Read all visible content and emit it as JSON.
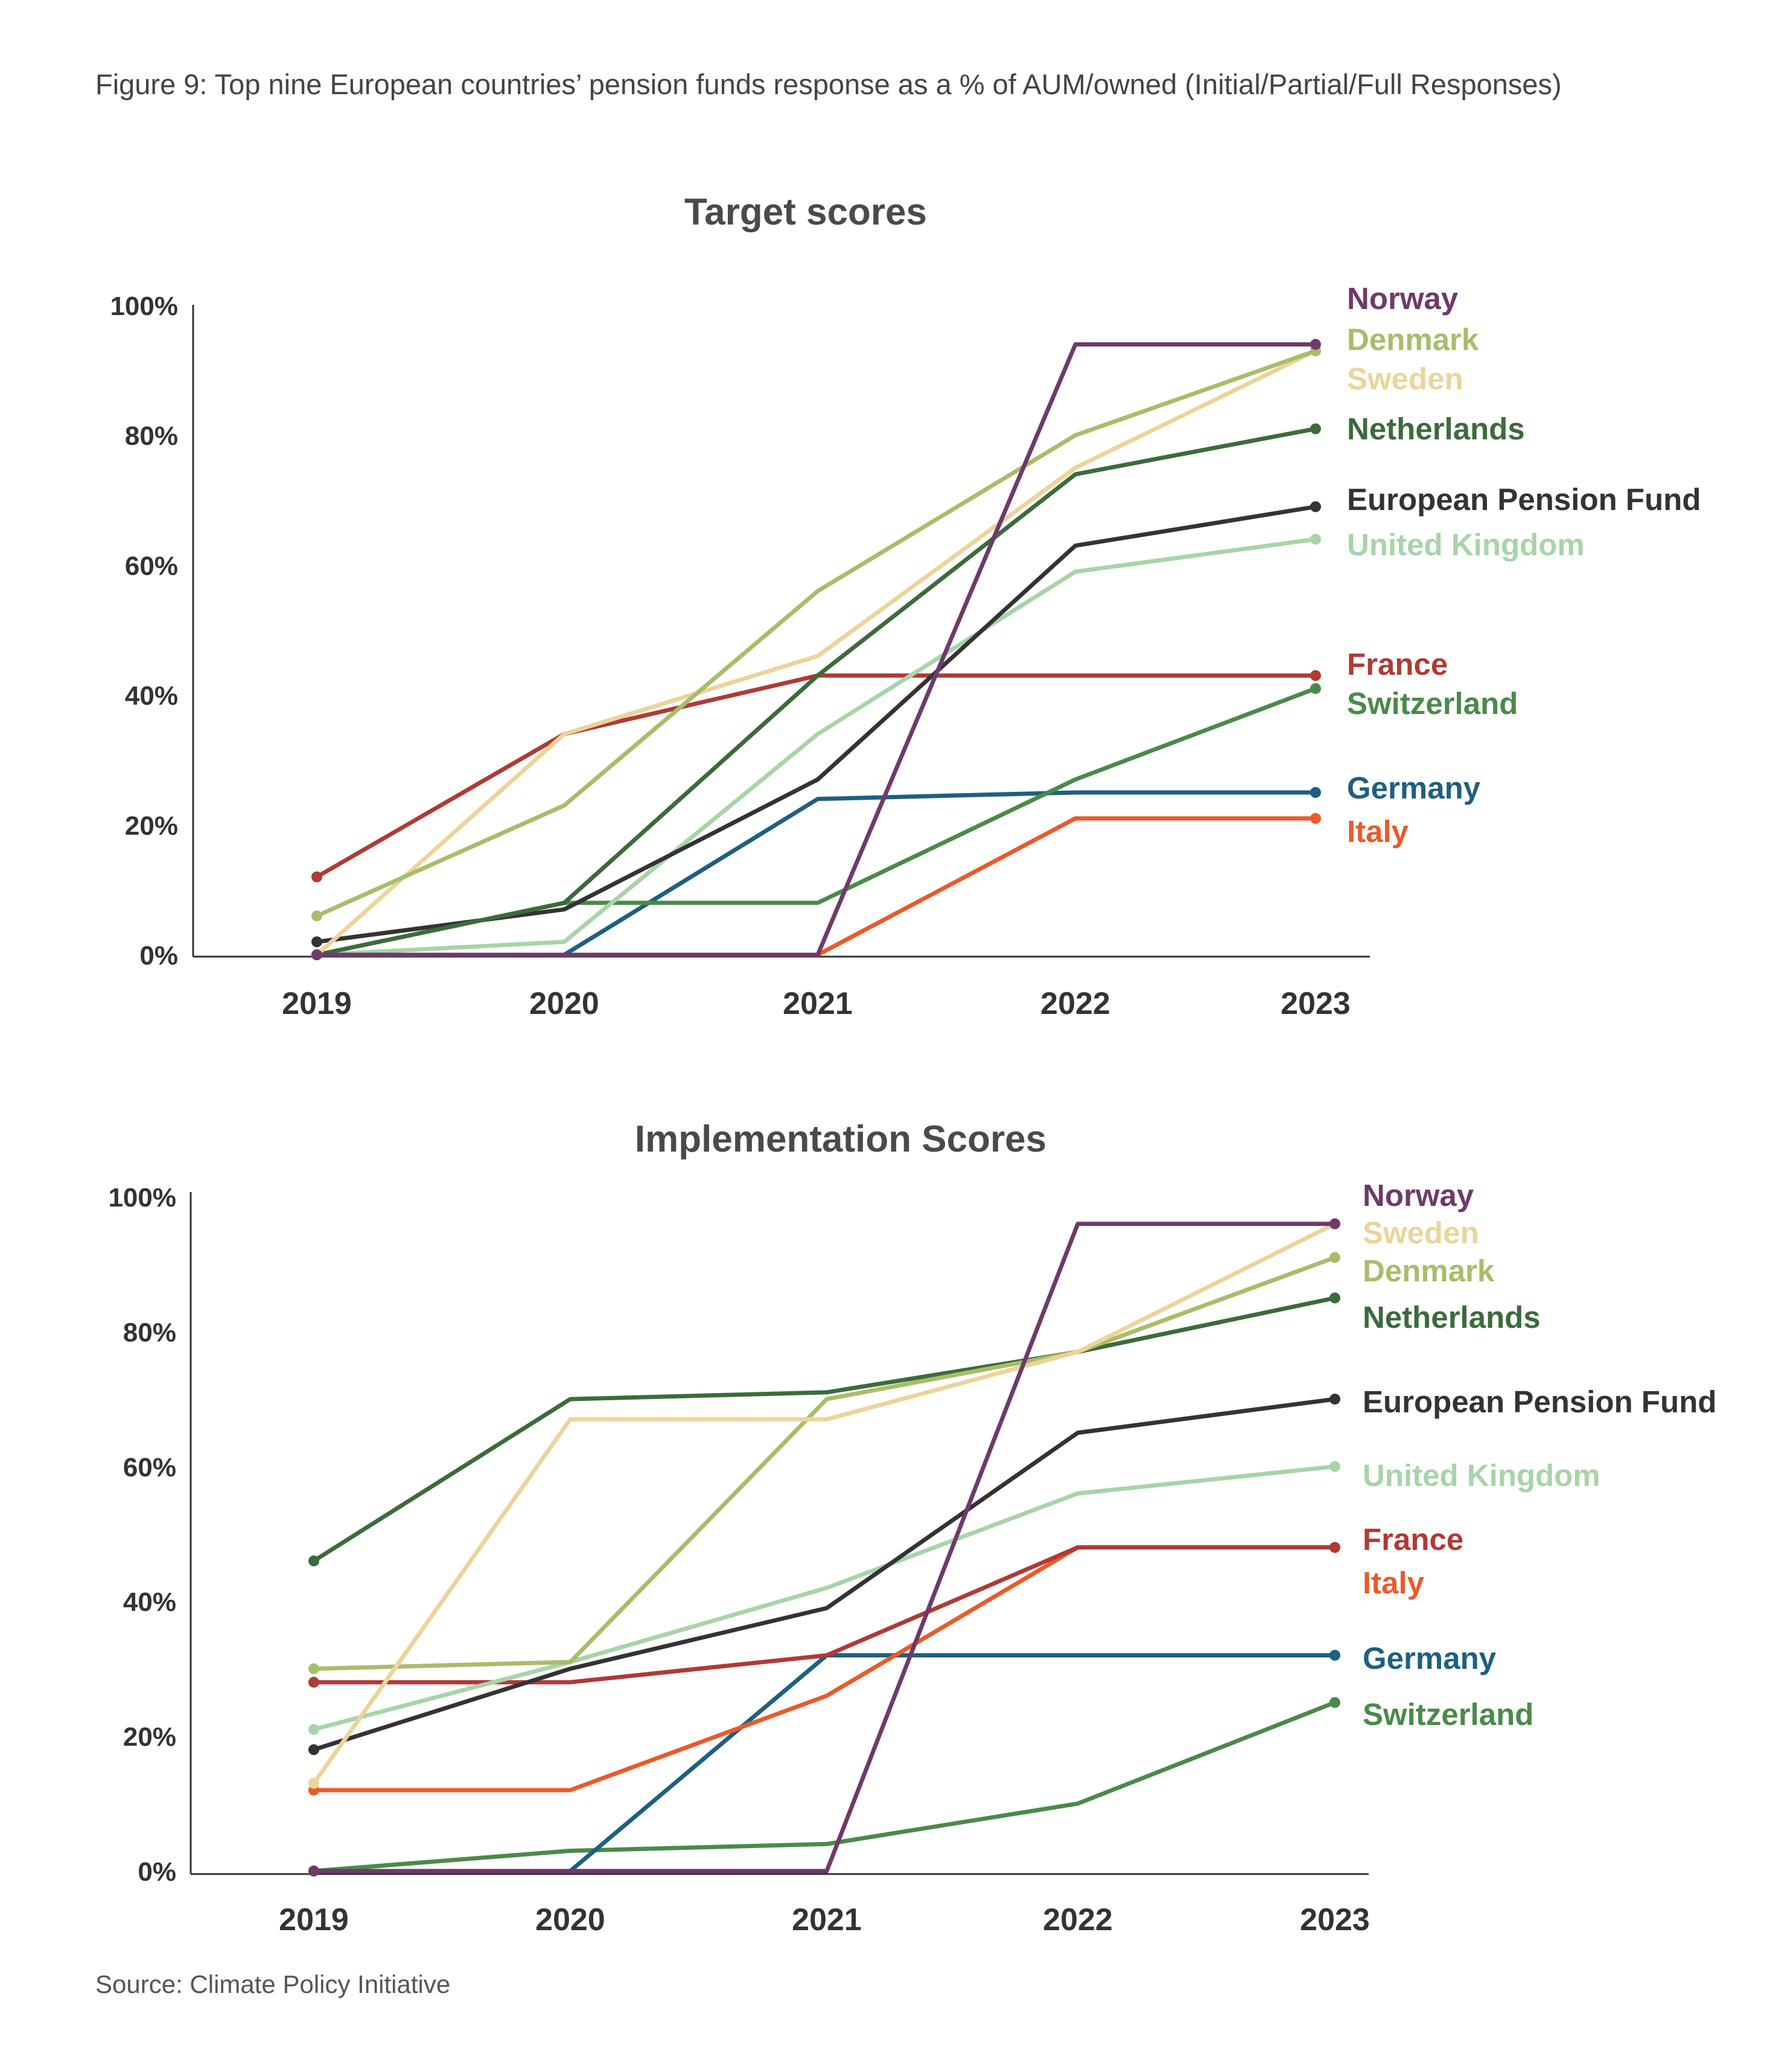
{
  "caption": "Figure 9: Top nine European countries’ pension funds response as a % of AUM/owned (Initial/Partial/Full Responses)",
  "source": "Source: Climate Policy Initiative",
  "colors": {
    "Norway": "#6e3a6a",
    "Denmark": "#a8bd6a",
    "Sweden": "#ecd49a",
    "Netherlands": "#3c6b3c",
    "European Pension Fund": "#333333",
    "United Kingdom": "#a8d4a8",
    "France": "#b03a35",
    "Switzerland": "#4a8a4a",
    "Germany": "#1e5f82",
    "Italy": "#ea5a2a"
  },
  "chart_data": [
    {
      "type": "line",
      "title": "Target scores",
      "x": [
        "2019",
        "2020",
        "2021",
        "2022",
        "2023"
      ],
      "ylim": [
        0,
        100
      ],
      "yticks": [
        "0%",
        "20%",
        "40%",
        "60%",
        "80%",
        "100%"
      ],
      "grid": false,
      "legend": "right, labels at line ends",
      "series": [
        {
          "name": "Norway",
          "values": [
            0,
            0,
            0,
            94,
            94
          ]
        },
        {
          "name": "Denmark",
          "values": [
            6,
            23,
            56,
            80,
            93
          ]
        },
        {
          "name": "Sweden",
          "values": [
            0,
            34,
            46,
            75,
            93
          ]
        },
        {
          "name": "Netherlands",
          "values": [
            0,
            8,
            43,
            74,
            81
          ]
        },
        {
          "name": "European Pension Fund",
          "values": [
            2,
            7,
            27,
            63,
            69
          ]
        },
        {
          "name": "United Kingdom",
          "values": [
            0,
            2,
            34,
            59,
            64
          ]
        },
        {
          "name": "France",
          "values": [
            12,
            34,
            43,
            43,
            43
          ]
        },
        {
          "name": "Switzerland",
          "values": [
            0,
            8,
            8,
            27,
            41
          ]
        },
        {
          "name": "Germany",
          "values": [
            0,
            0,
            24,
            25,
            25
          ]
        },
        {
          "name": "Italy",
          "values": [
            0,
            0,
            0,
            21,
            21
          ]
        }
      ]
    },
    {
      "type": "line",
      "title": "Implementation Scores",
      "x": [
        "2019",
        "2020",
        "2021",
        "2022",
        "2023"
      ],
      "ylim": [
        0,
        100
      ],
      "yticks": [
        "0%",
        "20%",
        "40%",
        "60%",
        "80%",
        "100%"
      ],
      "grid": false,
      "legend": "right, labels at line ends",
      "series": [
        {
          "name": "Norway",
          "values": [
            0,
            0,
            0,
            96,
            96
          ]
        },
        {
          "name": "Sweden",
          "values": [
            13,
            67,
            67,
            77,
            96
          ]
        },
        {
          "name": "Denmark",
          "values": [
            30,
            31,
            70,
            77,
            91
          ]
        },
        {
          "name": "Netherlands",
          "values": [
            46,
            70,
            71,
            77,
            85
          ]
        },
        {
          "name": "European Pension Fund",
          "values": [
            18,
            30,
            39,
            65,
            70
          ]
        },
        {
          "name": "United Kingdom",
          "values": [
            21,
            31,
            42,
            56,
            60
          ]
        },
        {
          "name": "France",
          "values": [
            28,
            28,
            32,
            48,
            48
          ]
        },
        {
          "name": "Italy",
          "values": [
            12,
            12,
            26,
            48,
            48
          ]
        },
        {
          "name": "Germany",
          "values": [
            0,
            0,
            32,
            32,
            32
          ]
        },
        {
          "name": "Switzerland",
          "values": [
            0,
            3,
            4,
            10,
            25
          ]
        }
      ]
    }
  ]
}
